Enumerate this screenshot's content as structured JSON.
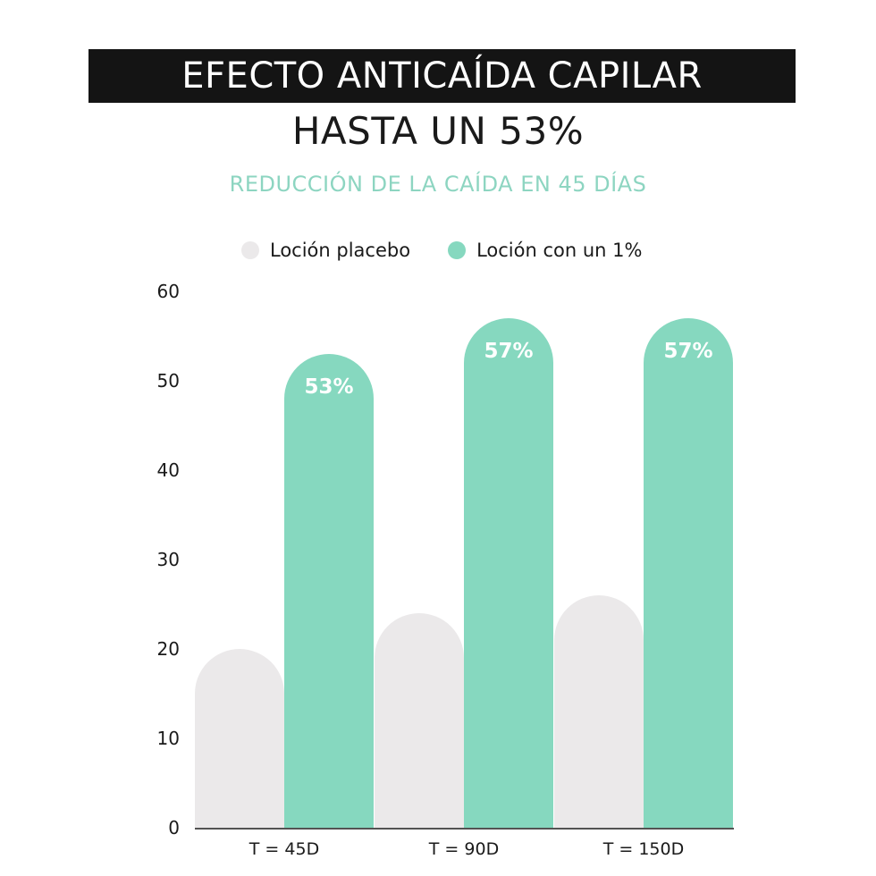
{
  "header": {
    "title": "EFECTO ANTICAÍDA CAPILAR",
    "headline": "HASTA UN 53%",
    "subline": "REDUCCIÓN DE LA CAÍDA EN 45 DÍAS"
  },
  "colors": {
    "title_band": "#141414",
    "placebo": "#ebe9ea",
    "treatment": "#86d8bf",
    "subline": "#8dd5c1"
  },
  "chart_data": {
    "type": "bar",
    "categories": [
      "T = 45D",
      "T = 90D",
      "T = 150D"
    ],
    "series": [
      {
        "name": "Loción placebo",
        "values": [
          20,
          24,
          26
        ],
        "labels": [
          "",
          "",
          ""
        ]
      },
      {
        "name": "Loción con un 1%",
        "values": [
          53,
          57,
          57
        ],
        "labels": [
          "53%",
          "57%",
          "57%"
        ]
      }
    ],
    "yticks": [
      "0",
      "10",
      "20",
      "30",
      "40",
      "50",
      "60"
    ],
    "ylim": [
      0,
      60
    ],
    "grid": false,
    "legend": "top-center"
  }
}
